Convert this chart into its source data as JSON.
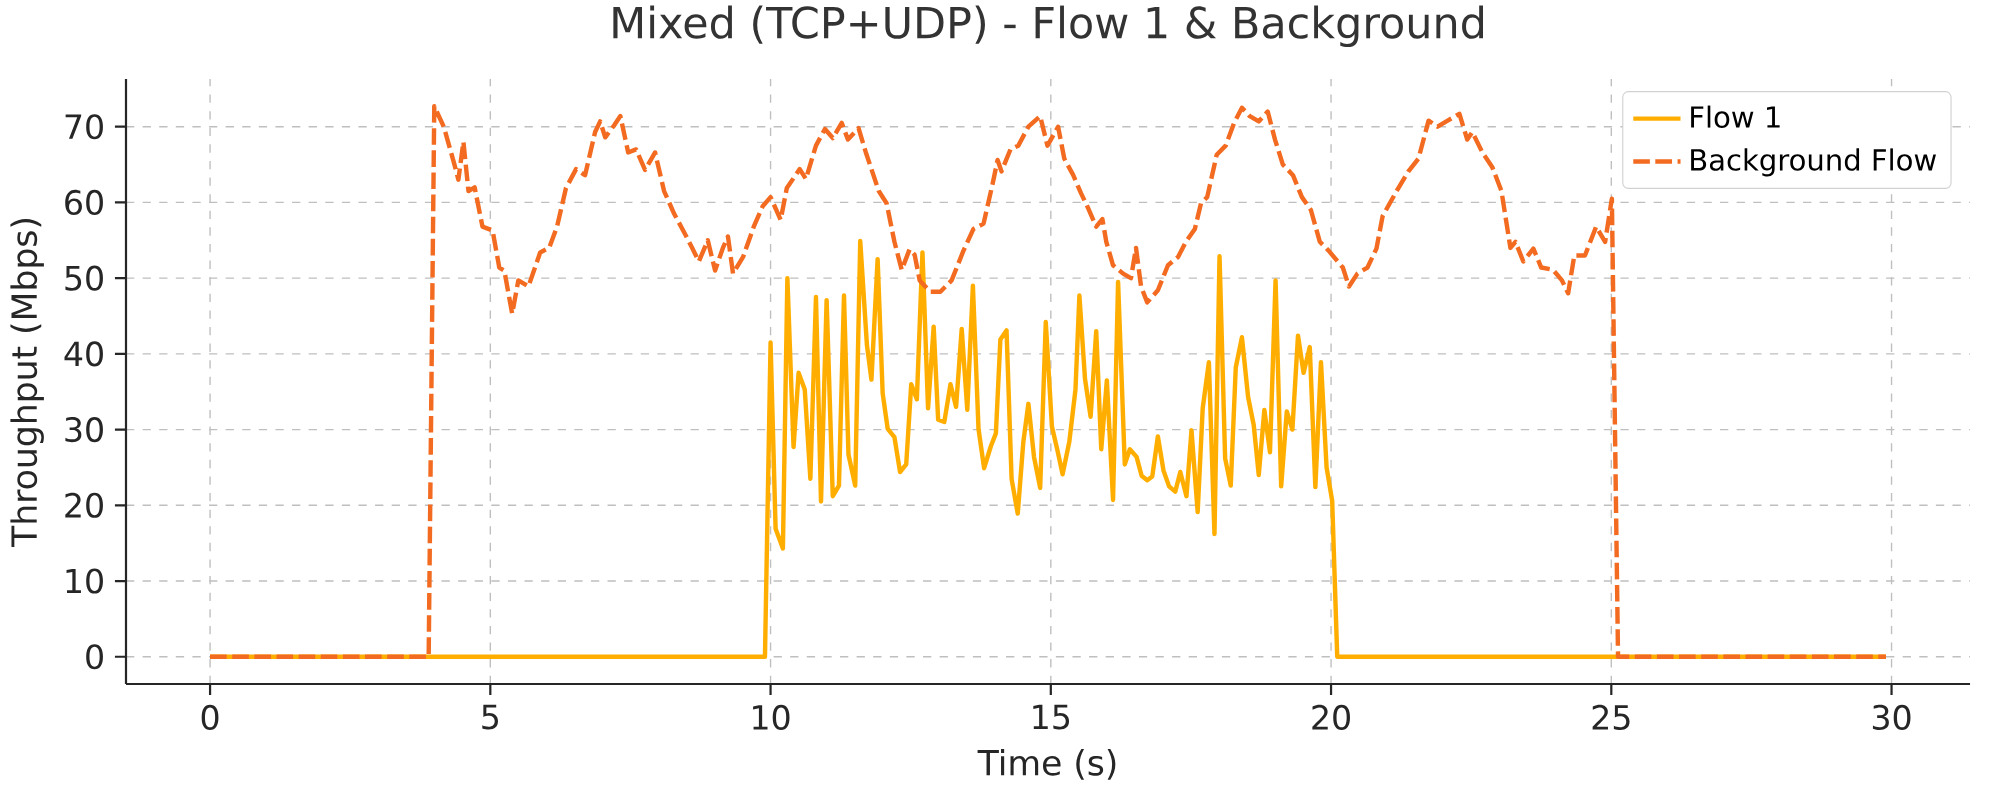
{
  "chart_data": {
    "type": "line",
    "title": "Mixed (TCP+UDP) - Flow 1 & Background",
    "xlabel": "Time (s)",
    "ylabel": "Throughput (Mbps)",
    "xlim": [
      -1.5,
      31.4
    ],
    "ylim": [
      -3.6,
      76.3
    ],
    "xticks": [
      0,
      5,
      10,
      15,
      20,
      25,
      30
    ],
    "yticks": [
      0,
      10,
      20,
      30,
      40,
      50,
      60,
      70
    ],
    "grid": true,
    "legend": "top right",
    "series": [
      {
        "name": "Flow 1",
        "color": "#ffae00",
        "line_style": "solid",
        "x": [
          0,
          9.9,
          10.0,
          10.09,
          10.22,
          10.3,
          10.41,
          10.5,
          10.61,
          10.71,
          10.81,
          10.9,
          11.0,
          11.11,
          11.22,
          11.31,
          11.39,
          11.51,
          11.6,
          11.72,
          11.8,
          11.91,
          12.0,
          12.09,
          12.21,
          12.31,
          12.42,
          12.51,
          12.61,
          12.71,
          12.81,
          12.91,
          12.99,
          13.1,
          13.21,
          13.31,
          13.41,
          13.51,
          13.61,
          13.71,
          13.81,
          13.93,
          14.02,
          14.1,
          14.21,
          14.3,
          14.41,
          14.51,
          14.6,
          14.7,
          14.81,
          14.91,
          15.02,
          15.12,
          15.21,
          15.33,
          15.44,
          15.51,
          15.61,
          15.71,
          15.81,
          15.9,
          16.0,
          16.11,
          16.2,
          16.32,
          16.41,
          16.53,
          16.62,
          16.72,
          16.81,
          16.91,
          17.01,
          17.11,
          17.22,
          17.31,
          17.42,
          17.51,
          17.62,
          17.71,
          17.82,
          17.92,
          18.01,
          18.11,
          18.21,
          18.3,
          18.41,
          18.52,
          18.62,
          18.71,
          18.81,
          18.91,
          19.01,
          19.11,
          19.21,
          19.31,
          19.41,
          19.51,
          19.62,
          19.72,
          19.82,
          19.92,
          20.02,
          20.11,
          29.9
        ],
        "values": [
          0,
          0,
          41.5,
          16.9,
          14.3,
          50,
          27.7,
          37.5,
          35.3,
          23.5,
          47.5,
          20.5,
          47.1,
          21.2,
          22.6,
          47.7,
          26.7,
          22.6,
          54.9,
          41.1,
          36.6,
          52.5,
          34.8,
          30.1,
          29,
          24.4,
          25.4,
          36,
          34,
          53.4,
          32.8,
          43.6,
          31.3,
          31,
          36,
          33,
          43.3,
          32.6,
          49,
          30.1,
          24.9,
          27.8,
          29.5,
          41.9,
          43.1,
          23.5,
          18.9,
          28.4,
          33.4,
          26.4,
          22.3,
          44.2,
          30.4,
          27.2,
          24.1,
          28.4,
          35.3,
          47.7,
          36.7,
          31.7,
          43,
          27.4,
          36.5,
          20.7,
          49.5,
          25.4,
          27.4,
          26.4,
          23.9,
          23.3,
          23.8,
          29.1,
          24.6,
          22.5,
          21.8,
          24.4,
          21.2,
          29.9,
          19.1,
          32.8,
          38.9,
          16.2,
          52.9,
          26.2,
          22.6,
          38.2,
          42.2,
          34.3,
          30.6,
          24,
          32.6,
          27,
          49.7,
          22.5,
          32.4,
          30,
          42.4,
          37.5,
          40.9,
          22.4,
          38.9,
          25,
          20.6,
          0,
          0
        ]
      },
      {
        "name": "Background Flow",
        "color": "#f36b21",
        "line_style": "dashed",
        "x": [
          0,
          3.9,
          4.0,
          4.17,
          4.36,
          4.43,
          4.52,
          4.61,
          4.72,
          4.86,
          5.04,
          5.16,
          5.25,
          5.39,
          5.5,
          5.68,
          5.89,
          6.05,
          6.19,
          6.35,
          6.53,
          6.69,
          6.87,
          6.96,
          7.05,
          7.21,
          7.32,
          7.46,
          7.6,
          7.76,
          7.94,
          8.1,
          8.28,
          8.49,
          8.6,
          8.72,
          8.88,
          9.01,
          9.15,
          9.24,
          9.33,
          9.51,
          9.7,
          9.86,
          10.0,
          10.18,
          10.29,
          10.52,
          10.63,
          10.81,
          10.97,
          11.11,
          11.27,
          11.38,
          11.57,
          11.7,
          11.93,
          12.07,
          12.21,
          12.34,
          12.48,
          12.57,
          12.66,
          12.85,
          13.03,
          13.23,
          13.44,
          13.62,
          13.8,
          13.96,
          14.05,
          14.12,
          14.28,
          14.42,
          14.6,
          14.81,
          14.94,
          15.13,
          15.24,
          15.4,
          15.54,
          15.65,
          15.81,
          15.92,
          15.99,
          16.11,
          16.29,
          16.43,
          16.52,
          16.61,
          16.72,
          16.91,
          17.09,
          17.27,
          17.41,
          17.57,
          17.68,
          17.79,
          17.96,
          18.12,
          18.27,
          18.41,
          18.55,
          18.71,
          18.87,
          19.0,
          19.14,
          19.32,
          19.48,
          19.64,
          19.8,
          19.96,
          20.21,
          20.32,
          20.47,
          20.65,
          20.81,
          20.92,
          21.17,
          21.38,
          21.56,
          21.74,
          21.9,
          22.08,
          22.29,
          22.43,
          22.52,
          22.7,
          22.88,
          23.04,
          23.2,
          23.29,
          23.43,
          23.61,
          23.75,
          23.96,
          24.12,
          24.23,
          24.34,
          24.53,
          24.73,
          24.89,
          25.01,
          25.12,
          29.9
        ],
        "values": [
          0,
          0,
          72.7,
          70,
          65,
          63,
          68,
          61.5,
          62,
          56.8,
          56.3,
          51.4,
          51,
          45.3,
          49.7,
          48.9,
          53.4,
          54,
          56.8,
          61.9,
          64.4,
          63.6,
          69.3,
          70.7,
          68.6,
          70.2,
          71.4,
          66.6,
          67,
          64.3,
          66.6,
          61.5,
          58.5,
          55.6,
          54,
          52.2,
          55,
          51,
          54,
          55.5,
          50.6,
          52.8,
          56.8,
          59.5,
          60.7,
          57.7,
          61.9,
          64.4,
          63.1,
          67.5,
          69.7,
          68.5,
          70.5,
          68.3,
          69.8,
          66.6,
          61.5,
          59.9,
          54.8,
          51.1,
          53.8,
          53.1,
          49.7,
          48.2,
          48.2,
          49.7,
          53.6,
          56.5,
          57.2,
          62.4,
          65.6,
          64.1,
          67,
          67.5,
          70,
          71.4,
          67.5,
          70,
          65.8,
          63.6,
          61.2,
          59.5,
          56.8,
          57.8,
          54.8,
          51.7,
          50.6,
          50,
          54,
          48.9,
          46.8,
          48.4,
          51.7,
          52.8,
          54.8,
          56.5,
          59.9,
          60.7,
          66.3,
          67.5,
          70.5,
          72.5,
          71.4,
          70.7,
          72,
          68.3,
          65,
          63.6,
          60.7,
          59,
          54.8,
          53.6,
          51.4,
          48.9,
          50.6,
          51.4,
          53.9,
          58.2,
          61.5,
          64.1,
          65.8,
          70.8,
          70,
          70.8,
          71.7,
          68.3,
          69.3,
          66.6,
          64.6,
          61.5,
          54,
          54.8,
          52.2,
          53.9,
          51.4,
          51.1,
          49.7,
          48,
          53,
          53,
          56.8,
          54.8,
          60.5,
          0,
          0
        ]
      }
    ]
  }
}
